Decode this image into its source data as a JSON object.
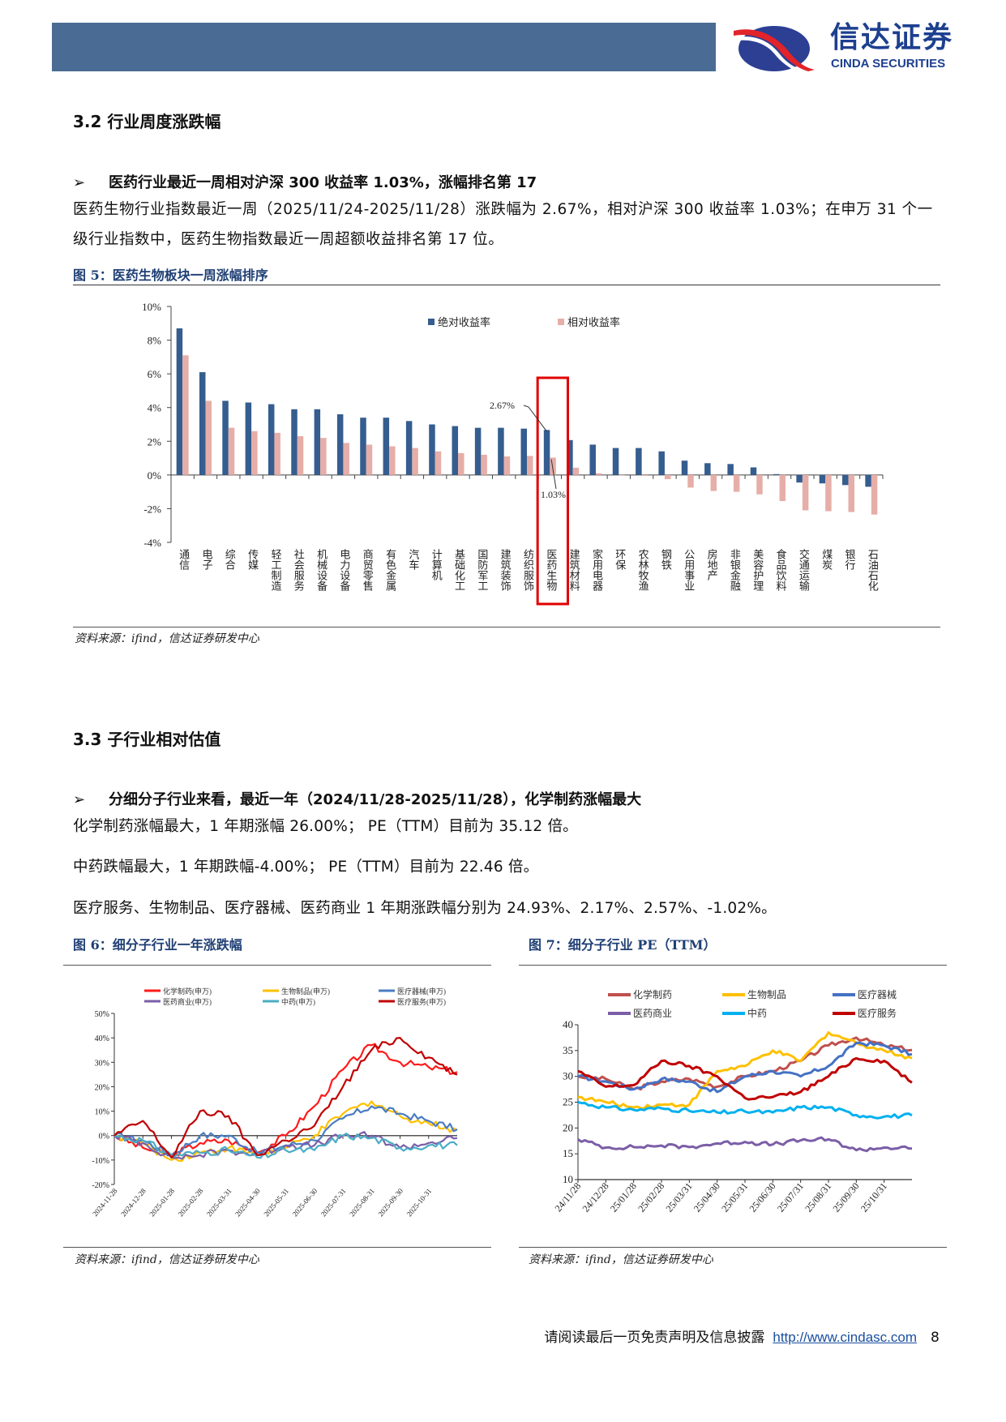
{
  "header": {
    "brand_cn": "信达证券",
    "brand_en": "CINDA SECURITIES",
    "bar_color": "#4a6c94",
    "brand_color": "#1d3f8f"
  },
  "section_32": {
    "title": "3.2 行业周度涨跌幅",
    "bullet_marker": "➢",
    "bullet": "医药行业最近一周相对沪深 300 收益率 1.03%，涨幅排名第 17",
    "paragraph": "医药生物行业指数最近一周（2025/11/24-2025/11/28）涨跌幅为 2.67%，相对沪深 300 收益率 1.03%；在申万 31 个一级行业指数中，医药生物指数最近一周超额收益排名第 17 位。",
    "figure_caption": "图 5：医药生物板块一周涨幅排序",
    "source": "资料来源：ifind，信达证券研发中心"
  },
  "section_33": {
    "title": "3.3 子行业相对估值",
    "bullet_marker": "➢",
    "bullet": "分细分子行业来看，最近一年（2024/11/28-2025/11/28），化学制药涨幅最大",
    "lines": [
      "化学制药涨幅最大，1 年期涨幅 26.00%； PE（TTM）目前为 35.12 倍。",
      "中药跌幅最大，1 年期跌幅-4.00%； PE（TTM）目前为 22.46 倍。",
      "医疗服务、生物制品、医疗器械、医药商业 1 年期涨跌幅分别为 24.93%、2.17%、2.57%、-1.02%。"
    ],
    "figure6_caption": "图 6：细分子行业一年涨跌幅",
    "figure7_caption": "图 7：细分子行业 PE（TTM）",
    "source6": "资料来源：ifind，信达证券研发中心",
    "source7": "资料来源：ifind，信达证券研发中心"
  },
  "footer": {
    "disclaimer": "请阅读最后一页免责声明及信息披露",
    "link": "http://www.cindasc.com",
    "page_number": "8"
  },
  "chart_data": [
    {
      "type": "bar",
      "title": "",
      "ylim": [
        -4,
        10
      ],
      "yticks": [
        "10%",
        "8%",
        "6%",
        "4%",
        "2%",
        "0%",
        "-2%",
        "-4%"
      ],
      "legend_placement": "top-right",
      "highlight_category": "医药生物",
      "highlight_color": "#e00000",
      "annotations": [
        "2.67%",
        "1.03%"
      ],
      "categories": [
        "通信",
        "电子",
        "综合",
        "传媒",
        "轻工制造",
        "社会服务",
        "机械设备",
        "电力设备",
        "商贸零售",
        "有色金属",
        "汽车",
        "计算机",
        "基础化工",
        "国防军工",
        "建筑装饰",
        "纺织服饰",
        "医药生物",
        "建筑材料",
        "家用电器",
        "环保",
        "农林牧渔",
        "钢铁",
        "公用事业",
        "房地产",
        "非银金融",
        "美容护理",
        "食品饮料",
        "交通运输",
        "煤炭",
        "银行",
        "石油石化"
      ],
      "series": [
        {
          "name": "绝对收益率",
          "color": "#355d8f",
          "values": [
            8.7,
            6.1,
            4.4,
            4.3,
            4.2,
            3.9,
            3.9,
            3.6,
            3.4,
            3.4,
            3.2,
            3.0,
            2.9,
            2.8,
            2.8,
            2.75,
            2.67,
            2.07,
            1.8,
            1.6,
            1.6,
            1.4,
            0.85,
            0.7,
            0.65,
            0.45,
            0.05,
            -0.45,
            -0.5,
            -0.6,
            -0.7
          ]
        },
        {
          "name": "相对收益率",
          "color": "#e6aea8",
          "values": [
            7.1,
            4.4,
            2.8,
            2.6,
            2.5,
            2.3,
            2.2,
            1.9,
            1.8,
            1.7,
            1.6,
            1.4,
            1.3,
            1.2,
            1.1,
            1.13,
            1.03,
            0.43,
            0.1,
            -0.02,
            -0.05,
            -0.25,
            -0.75,
            -0.95,
            -1.0,
            -1.15,
            -1.55,
            -2.1,
            -2.15,
            -2.2,
            -2.35
          ]
        }
      ]
    },
    {
      "type": "line",
      "title": "",
      "ylim": [
        -20,
        50
      ],
      "yticks": [
        "50%",
        "40%",
        "30%",
        "20%",
        "10%",
        "0%",
        "-10%",
        "-20%"
      ],
      "x": [
        "2024-11-28",
        "2024-12-28",
        "2025-01-28",
        "2025-02-28",
        "2025-03-31",
        "2025-04-30",
        "2025-05-31",
        "2025-06-30",
        "2025-07-31",
        "2025-08-31",
        "2025-09-30",
        "2025-10-31",
        "2025-11-28"
      ],
      "xticks": [
        "2024-11-28",
        "2024-12-28",
        "2025-01-28",
        "2025-02-28",
        "2025-03-31",
        "2025-04-30",
        "2025-05-31",
        "2025-06-30",
        "2025-07-31",
        "2025-08-31",
        "2025-09-30",
        "2025-10-31"
      ],
      "legend_placement": "top",
      "series": [
        {
          "name": "化学制药(申万)",
          "color": "#ff1a1a",
          "values": [
            0,
            -5,
            -8,
            -3,
            -2,
            -7,
            0,
            12,
            27,
            37,
            30,
            28,
            26
          ]
        },
        {
          "name": "生物制品(申万)",
          "color": "#ffc000",
          "values": [
            0,
            -3,
            -10,
            -7,
            -5,
            -8,
            -5,
            0,
            9,
            14,
            8,
            5,
            2.17
          ]
        },
        {
          "name": "医疗器械(申万)",
          "color": "#4a7cc2",
          "values": [
            0,
            -2,
            -8,
            0,
            0,
            -7,
            -4,
            -2,
            7,
            12,
            9,
            6,
            2.57
          ]
        },
        {
          "name": "医药商业(申万)",
          "color": "#7b5ea7",
          "values": [
            0,
            -3,
            -9,
            -8,
            -6,
            -8,
            -4,
            -4,
            0,
            0,
            -5,
            -3,
            -1.02
          ]
        },
        {
          "name": "中药(申万)",
          "color": "#4bacc6",
          "values": [
            0,
            -2,
            -8,
            -7,
            -6,
            -9,
            -6,
            -6,
            0,
            -1,
            -5,
            -4,
            -4
          ]
        },
        {
          "name": "医疗服务(申万)",
          "color": "#c00000",
          "values": [
            0,
            6,
            -9,
            10,
            8,
            -8,
            -2,
            4,
            20,
            35,
            40,
            32,
            24.93
          ]
        }
      ]
    },
    {
      "type": "line",
      "title": "",
      "ylim": [
        10,
        40
      ],
      "yticks": [
        "40",
        "35",
        "30",
        "25",
        "20",
        "15",
        "10"
      ],
      "x": [
        "24/11/28",
        "24/12/28",
        "25/01/28",
        "25/02/28",
        "25/03/31",
        "25/04/30",
        "25/05/31",
        "25/06/30",
        "25/07/31",
        "25/08/31",
        "25/09/30",
        "25/10/31",
        "25/11/28"
      ],
      "xticks": [
        "24/11/28",
        "24/12/28",
        "25/01/28",
        "25/02/28",
        "25/03/31",
        "25/04/30",
        "25/05/31",
        "25/06/30",
        "25/07/31",
        "25/08/31",
        "25/09/30",
        "25/10/31"
      ],
      "legend_placement": "top",
      "series": [
        {
          "name": "化学制药",
          "color": "#c0504d",
          "values": [
            30,
            29.5,
            27.5,
            29,
            29.5,
            28,
            30,
            31,
            33,
            36,
            37.5,
            36,
            35.12
          ]
        },
        {
          "name": "生物制品",
          "color": "#ffc000",
          "values": [
            26,
            25,
            24,
            24.5,
            24.5,
            31,
            32,
            35,
            33,
            38.5,
            36.5,
            35,
            33.5
          ]
        },
        {
          "name": "医疗器械",
          "color": "#4472c4",
          "values": [
            30,
            29,
            27.5,
            29.5,
            29,
            27,
            30,
            31,
            30,
            32,
            36.5,
            36,
            34.3
          ]
        },
        {
          "name": "医药商业",
          "color": "#7b5ea7",
          "values": [
            17.8,
            16.2,
            16.3,
            16.6,
            16.3,
            17,
            17.3,
            16.8,
            17.6,
            17.8,
            15.7,
            16.2,
            16
          ]
        },
        {
          "name": "中药",
          "color": "#00b0f0",
          "values": [
            25,
            24,
            23.5,
            23.8,
            23.3,
            23,
            23.2,
            23,
            24,
            24,
            22.5,
            22.2,
            22.46
          ]
        },
        {
          "name": "医疗服务",
          "color": "#c00000",
          "values": [
            31,
            28,
            28.3,
            33,
            32,
            30,
            25.8,
            26,
            27,
            30,
            33.5,
            33,
            28.8
          ]
        }
      ]
    }
  ]
}
